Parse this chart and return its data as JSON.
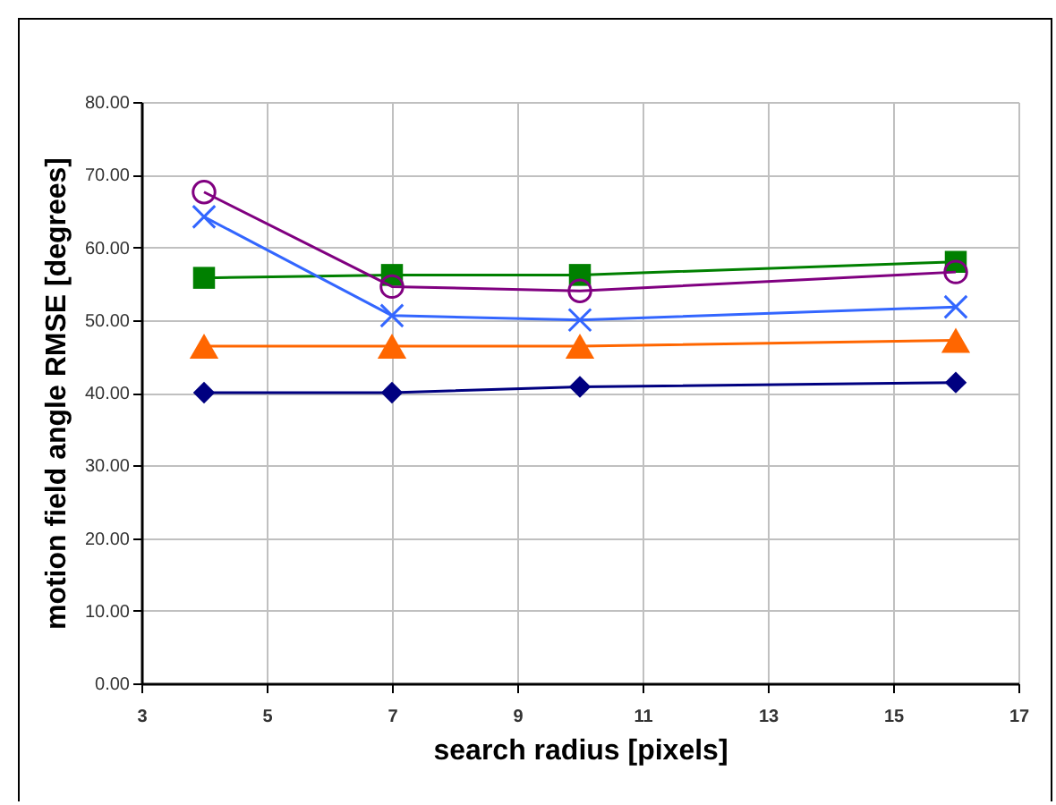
{
  "chart_data": {
    "type": "line",
    "xlabel": "search radius [pixels]",
    "ylabel": "motion field angle RMSE [degrees]",
    "x": [
      4,
      7,
      10,
      16
    ],
    "series": [
      {
        "color": "#000080",
        "marker": "diamond",
        "values": [
          40.0,
          40.0,
          40.8,
          41.4
        ]
      },
      {
        "color": "#ff6600",
        "marker": "triangle",
        "values": [
          46.4,
          46.4,
          46.4,
          47.2
        ]
      },
      {
        "color": "#008000",
        "marker": "square",
        "values": [
          55.8,
          56.2,
          56.2,
          58.0
        ]
      },
      {
        "color": "#3366ff",
        "marker": "cross",
        "values": [
          64.2,
          50.6,
          50.0,
          51.8
        ]
      },
      {
        "color": "#800080",
        "marker": "circle",
        "values": [
          67.6,
          54.6,
          54.0,
          56.6
        ]
      }
    ],
    "xlim": [
      3,
      17
    ],
    "xticks": [
      3,
      5,
      7,
      9,
      11,
      13,
      15,
      17
    ],
    "ylim": [
      0,
      80
    ],
    "yticks": [
      {
        "value": 0,
        "label": "0.00"
      },
      {
        "value": 10,
        "label": "10.00"
      },
      {
        "value": 20,
        "label": "20.00"
      },
      {
        "value": 30,
        "label": "30.00"
      },
      {
        "value": 40,
        "label": "40.00"
      },
      {
        "value": 50,
        "label": "50.00"
      },
      {
        "value": 60,
        "label": "60.00"
      },
      {
        "value": 70,
        "label": "70.00"
      },
      {
        "value": 80,
        "label": "80.00"
      }
    ],
    "grid": true,
    "line_style": "solid"
  }
}
